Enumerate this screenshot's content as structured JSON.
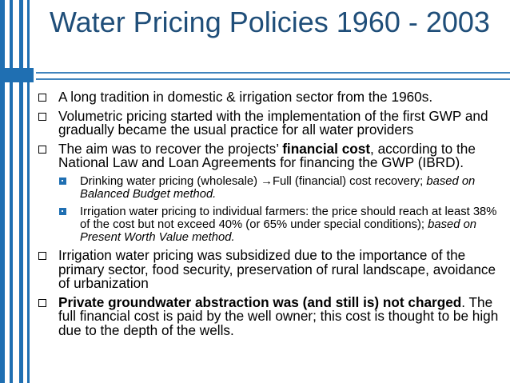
{
  "title": "Water Pricing Policies 1960 - 2003",
  "colors": {
    "accent": "#1f6fb2",
    "title": "#1f4e79"
  },
  "bullets": {
    "b1": "A long tradition in domestic & irrigation sector from the 1960s.",
    "b2": "Volumetric pricing started with the implementation of the first GWP and gradually became the usual practice for all water providers",
    "b3_pre": "The aim was to recover the projects’ ",
    "b3_bold": "financial cost",
    "b3_post": ", according to the National Law and Loan Agreements for financing the GWP (IBRD).",
    "s1_pre": "Drinking water pricing (wholesale) ",
    "s1_arrow": "→",
    "s1_post": "Full (financial) cost recovery;",
    "s1_italic": "based on Balanced Budget method.",
    "s2_pre": "Irrigation water pricing to individual farmers: the price should reach at least 38% of the cost but not exceed 40% (or 65% under special conditions);",
    "s2_italic": "based on Present Worth Value method.",
    "b4": "Irrigation water pricing was subsidized due to the importance of the primary sector, food security, preservation of rural landscape, avoidance of urbanization",
    "b5_bold": "Private groundwater abstraction was (and still is) not charged",
    "b5_post": ". The full financial cost is paid by the well owner; this cost is thought to be high due to the depth of the wells."
  }
}
